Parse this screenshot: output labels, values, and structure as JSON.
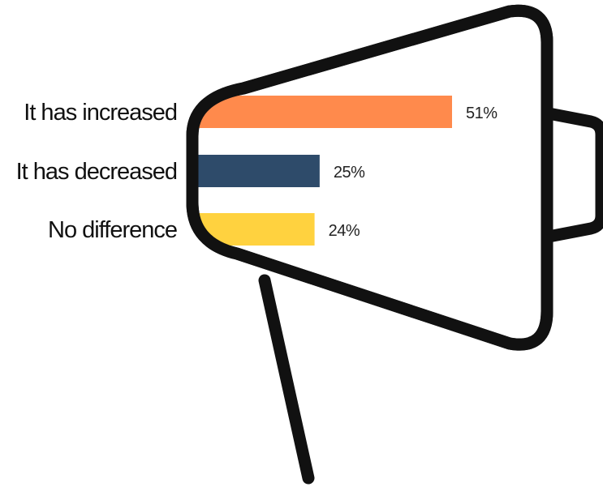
{
  "chart_data": {
    "type": "bar",
    "orientation": "horizontal",
    "categories": [
      "It has increased",
      "It has decreased",
      "No difference"
    ],
    "values": [
      51,
      25,
      24
    ],
    "value_labels": [
      "51%",
      "25%",
      "24%"
    ],
    "bar_colors": [
      "#FF8A4C",
      "#2E4B6A",
      "#FFD23F"
    ],
    "outline_color": "#111111",
    "xlim": [
      0,
      51
    ],
    "grid": false,
    "title": "",
    "xlabel": "",
    "ylabel": ""
  }
}
